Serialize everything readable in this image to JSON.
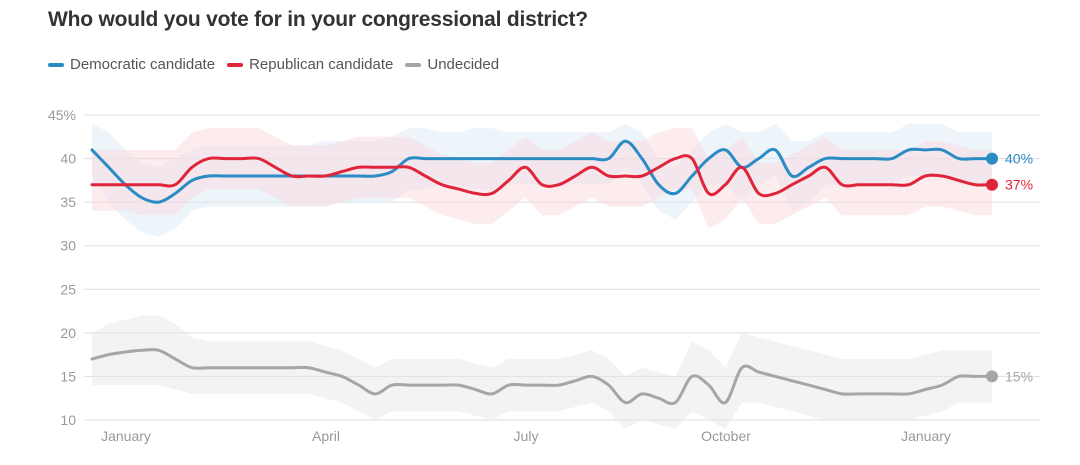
{
  "title": "Who would you vote for in your congressional district?",
  "legend": [
    {
      "label": "Democratic candidate",
      "color": "#2b8cc4"
    },
    {
      "label": "Republican candidate",
      "color": "#e0243a"
    },
    {
      "label": "Undecided",
      "color": "#a6a6a6"
    }
  ],
  "chart_data": {
    "type": "line",
    "title": "Who would you vote for in your congressional district?",
    "xlabel": "",
    "ylabel": "",
    "ylim": [
      10,
      45
    ],
    "y_ticks": [
      10,
      15,
      20,
      25,
      30,
      35,
      40,
      45
    ],
    "y_tick_labels": [
      "10",
      "15",
      "20",
      "25",
      "30",
      "35",
      "40",
      "45%"
    ],
    "x_ticks": [
      "January",
      "April",
      "July",
      "October",
      "January"
    ],
    "grid": true,
    "legend_position": "top-left",
    "series": [
      {
        "name": "Democratic candidate",
        "color": "#2b8cc4",
        "end_label": "40%",
        "values": [
          41,
          39,
          37,
          35.5,
          35,
          36,
          37.5,
          38,
          38,
          38,
          38,
          38,
          38,
          38,
          38,
          38,
          38,
          38,
          38.5,
          40,
          40,
          40,
          40,
          40,
          40,
          40,
          40,
          40,
          40,
          40,
          40,
          40,
          42,
          40,
          37,
          36,
          38,
          40,
          41,
          39,
          40,
          41,
          38,
          39,
          40,
          40,
          40,
          40,
          40,
          41,
          41,
          41,
          40,
          40,
          40
        ],
        "band_upper": [
          44,
          43,
          41,
          39.5,
          39,
          40,
          41,
          41.5,
          41.5,
          41.5,
          41.5,
          41.5,
          41.5,
          41.5,
          42,
          42,
          42,
          42,
          42.5,
          43.5,
          43.5,
          43,
          43,
          43.5,
          43.5,
          43,
          43,
          43,
          43,
          43,
          43,
          43,
          44,
          43,
          40,
          39,
          41,
          43,
          44,
          43,
          43,
          44,
          42,
          42,
          43,
          43,
          43,
          43,
          43,
          44,
          44,
          44,
          43,
          43,
          43
        ],
        "band_lower": [
          38,
          35,
          33,
          31.5,
          31,
          32,
          34,
          34.5,
          34.5,
          34.5,
          34.5,
          34.5,
          34.5,
          34.5,
          34.5,
          35,
          35,
          35,
          35,
          36.5,
          36.5,
          37,
          37,
          36.5,
          36.5,
          37,
          37,
          37,
          37,
          37,
          37,
          37,
          39,
          37,
          34,
          33,
          35,
          37,
          37,
          35,
          37,
          38,
          34,
          35,
          37,
          37,
          37,
          37,
          37,
          38,
          38,
          38,
          37,
          37,
          37
        ]
      },
      {
        "name": "Republican candidate",
        "color": "#e0243a",
        "end_label": "37%",
        "values": [
          37,
          37,
          37,
          37,
          37,
          37,
          39,
          40,
          40,
          40,
          40,
          39,
          38,
          38,
          38,
          38.5,
          39,
          39,
          39,
          39,
          38,
          37,
          36.5,
          36,
          36,
          37.5,
          39,
          37,
          37,
          38,
          39,
          38,
          38,
          38,
          39,
          40,
          40,
          36,
          37,
          39,
          36,
          36,
          37,
          38,
          39,
          37,
          37,
          37,
          37,
          37,
          38,
          38,
          37.5,
          37,
          37
        ],
        "band_upper": [
          41,
          41,
          41,
          41,
          41,
          41,
          43,
          43.5,
          43.5,
          43.5,
          43.5,
          42.5,
          41.5,
          41.5,
          41.5,
          42,
          42.5,
          42.5,
          42.5,
          42.5,
          41.5,
          40.5,
          40,
          39.5,
          39.5,
          41,
          42.5,
          41,
          41,
          42,
          43,
          42,
          42,
          42,
          43,
          43.5,
          43.5,
          40,
          41,
          42.5,
          39.5,
          39.5,
          40.5,
          41.5,
          42.5,
          41,
          41,
          41,
          41,
          41,
          42,
          42,
          41.5,
          41,
          41
        ],
        "band_lower": [
          34,
          34,
          34,
          33.5,
          33.5,
          33.5,
          35.5,
          36.5,
          36.5,
          36.5,
          36.5,
          35.5,
          34.5,
          34.5,
          34.5,
          35,
          35.5,
          35.5,
          35.5,
          35.5,
          34.5,
          33.5,
          33,
          32.5,
          32.5,
          34,
          35.5,
          33.5,
          33.5,
          34.5,
          35.5,
          34.5,
          34.5,
          34.5,
          35.5,
          36.5,
          36.5,
          32,
          33,
          35.5,
          32.5,
          32.5,
          33.5,
          34.5,
          35.5,
          33.5,
          33.5,
          33.5,
          33.5,
          33.5,
          34.5,
          34.5,
          34,
          33.5,
          33.5
        ]
      },
      {
        "name": "Undecided",
        "color": "#a6a6a6",
        "end_label": "15%",
        "values": [
          17,
          17.5,
          17.8,
          18,
          18,
          17,
          16,
          16,
          16,
          16,
          16,
          16,
          16,
          16,
          15.5,
          15,
          14,
          13,
          14,
          14,
          14,
          14,
          14,
          13.5,
          13,
          14,
          14,
          14,
          14,
          14.5,
          15,
          14,
          12,
          13,
          12.5,
          12,
          15,
          14,
          12,
          16,
          15.5,
          15,
          14.5,
          14,
          13.5,
          13,
          13,
          13,
          13,
          13,
          13.5,
          14,
          15,
          15,
          15
        ],
        "band_upper": [
          20,
          21,
          21.5,
          22,
          22,
          21,
          19.5,
          19,
          19,
          19,
          19,
          19,
          19,
          19,
          18.5,
          18,
          17,
          16,
          17,
          17,
          17,
          17,
          17,
          16.5,
          16,
          17,
          17,
          17,
          17,
          17.5,
          18,
          17,
          15,
          16,
          15.5,
          15,
          19,
          18,
          16,
          20,
          19.5,
          19,
          18.5,
          18,
          17.5,
          17,
          17,
          17,
          17,
          17,
          17.5,
          18,
          18,
          18,
          18
        ],
        "band_lower": [
          14,
          14,
          14,
          14,
          14,
          13.5,
          13,
          13,
          13,
          13,
          13,
          13,
          13,
          13,
          12.5,
          12,
          11,
          10,
          11,
          11,
          11,
          11,
          11,
          10.5,
          10,
          11,
          11,
          11,
          11,
          11.5,
          12,
          11,
          9,
          10,
          9.5,
          9,
          11,
          10,
          9,
          12,
          12,
          11.5,
          11,
          10.5,
          10,
          10,
          10,
          10,
          10,
          10,
          10.5,
          11,
          12,
          12,
          12
        ]
      }
    ]
  }
}
